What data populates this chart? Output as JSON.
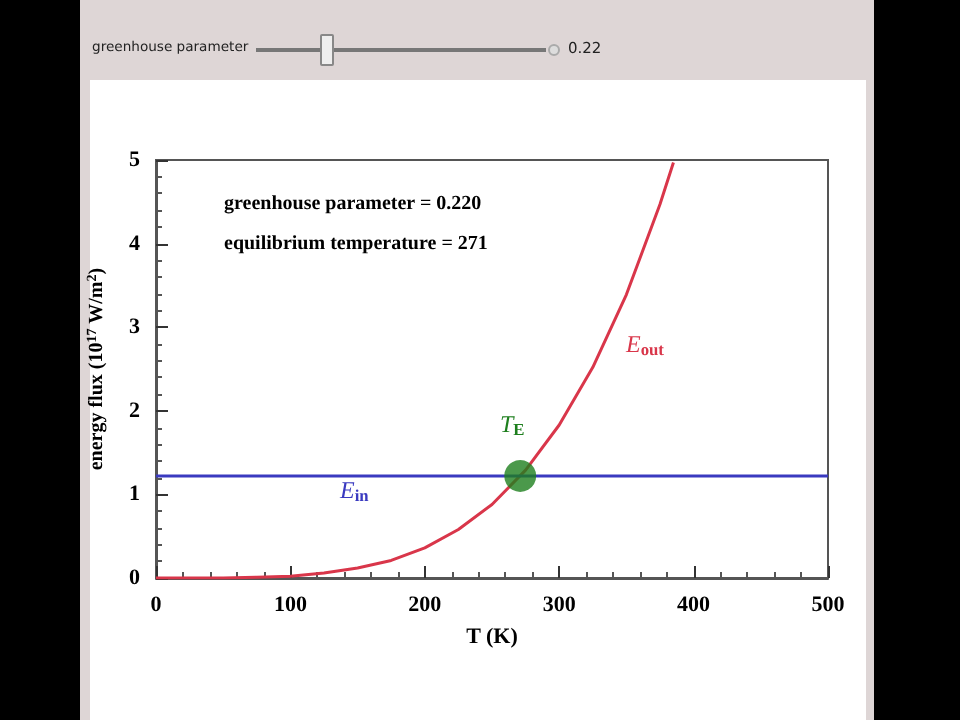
{
  "chart_data": {
    "type": "line",
    "xlabel": "T (K)",
    "ylabel": "energy flux (10$^{17}$ W/m$^{2}$)",
    "xlim": [
      0,
      500
    ],
    "xticks": [
      0,
      100,
      200,
      300,
      400,
      500
    ],
    "ylim": [
      0,
      5
    ],
    "yticks": [
      0,
      1,
      2,
      3,
      4,
      5
    ],
    "grid": false,
    "marker": "none",
    "series": [
      {
        "color": "#d9364a",
        "x": [
          0,
          25,
          50,
          75,
          100,
          125,
          150,
          175,
          200,
          225,
          250,
          275,
          300,
          325,
          350,
          375,
          385
        ],
        "values": [
          0,
          0,
          0,
          0.01,
          0.02,
          0.06,
          0.12,
          0.21,
          0.36,
          0.58,
          0.88,
          1.29,
          1.83,
          2.52,
          3.39,
          4.47,
          4.97
        ]
      },
      {
        "type": "line",
        "color": "#3a3ac0",
        "x": [
          0,
          500
        ],
        "values": [
          1.22,
          1.22
        ]
      },
      {
        "type": "scatter",
        "color": "#1e7f1e",
        "marker": "circle",
        "x": [
          271
        ],
        "values": [
          1.22
        ]
      }
    ],
    "annotations": [
      "greenhouse parameter",
      "0.22",
      "greenhouse parameter = 0.220",
      "equilibrium temperature = 271",
      "E$_{out}$",
      "E$_{in}$",
      "T$_{E}$"
    ]
  }
}
